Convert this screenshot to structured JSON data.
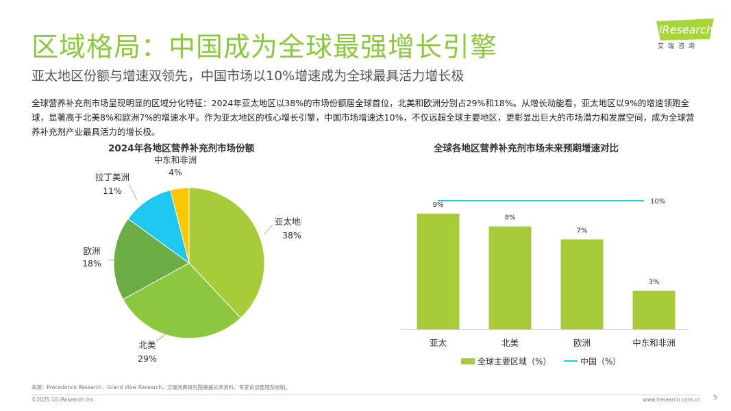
{
  "header": {
    "title": "区域格局：中国成为全球最强增长引擎",
    "subtitle": "亚太地区份额与增速双领先，中国市场以10%增速成为全球最具活力增长极",
    "logo_text": "iResearch",
    "logo_sub": "艾瑞咨询"
  },
  "body_text": "全球营养补充剂市场呈现明显的区域分化特征：2024年亚太地区以38%的市场份额居全球首位，北美和欧洲分别占29%和18%。从增长动能看，亚太地区以9%的增速领跑全球，显著高于北美8%和欧洲7%的增速水平。作为亚太地区的核心增长引擎，中国市场增速达10%，不仅远超全球主要地区，更彰显出巨大的市场潜力和发展空间，成为全球营养补充剂产业最具活力的增长极。",
  "chart_data": [
    {
      "type": "pie",
      "title": "2024年各地区营养补充剂市场份额",
      "unit": "%",
      "slices": [
        {
          "label": "亚太地区",
          "value": 38,
          "value_label": "38%",
          "color": "#a6cd39"
        },
        {
          "label": "北美",
          "value": 29,
          "value_label": "29%",
          "color": "#8dc63f"
        },
        {
          "label": "欧洲",
          "value": 18,
          "value_label": "18%",
          "color": "#6aac46"
        },
        {
          "label": "拉丁美洲",
          "value": 11,
          "value_label": "11%",
          "color": "#1ec8ef"
        },
        {
          "label": "中东和非洲",
          "value": 4,
          "value_label": "4%",
          "color": "#fcc600"
        }
      ]
    },
    {
      "type": "bar",
      "title": "全球各地区营养补充剂市场未来预期增速对比",
      "categories": [
        "亚太",
        "北美",
        "欧洲",
        "中东和非洲"
      ],
      "series": [
        {
          "name": "全球主要区域（%）",
          "type": "bar",
          "values": [
            9,
            8,
            7,
            3
          ],
          "value_labels": [
            "9%",
            "8%",
            "7%",
            "3%"
          ],
          "color": "#a6cd39"
        },
        {
          "name": "中国（%）",
          "type": "line",
          "value": 10,
          "value_label": "10%",
          "color": "#1ec8ef"
        }
      ],
      "ylim": [
        0,
        11
      ]
    }
  ],
  "footer": {
    "source": "来源：Precedence Research，Grand View Research，艾瑞消费研究院根据公开资料、专家访谈整理及绘制。",
    "copyright": "©2025.10 iResearch Inc.",
    "site": "www.iresearch.com.cn",
    "page": "5"
  }
}
